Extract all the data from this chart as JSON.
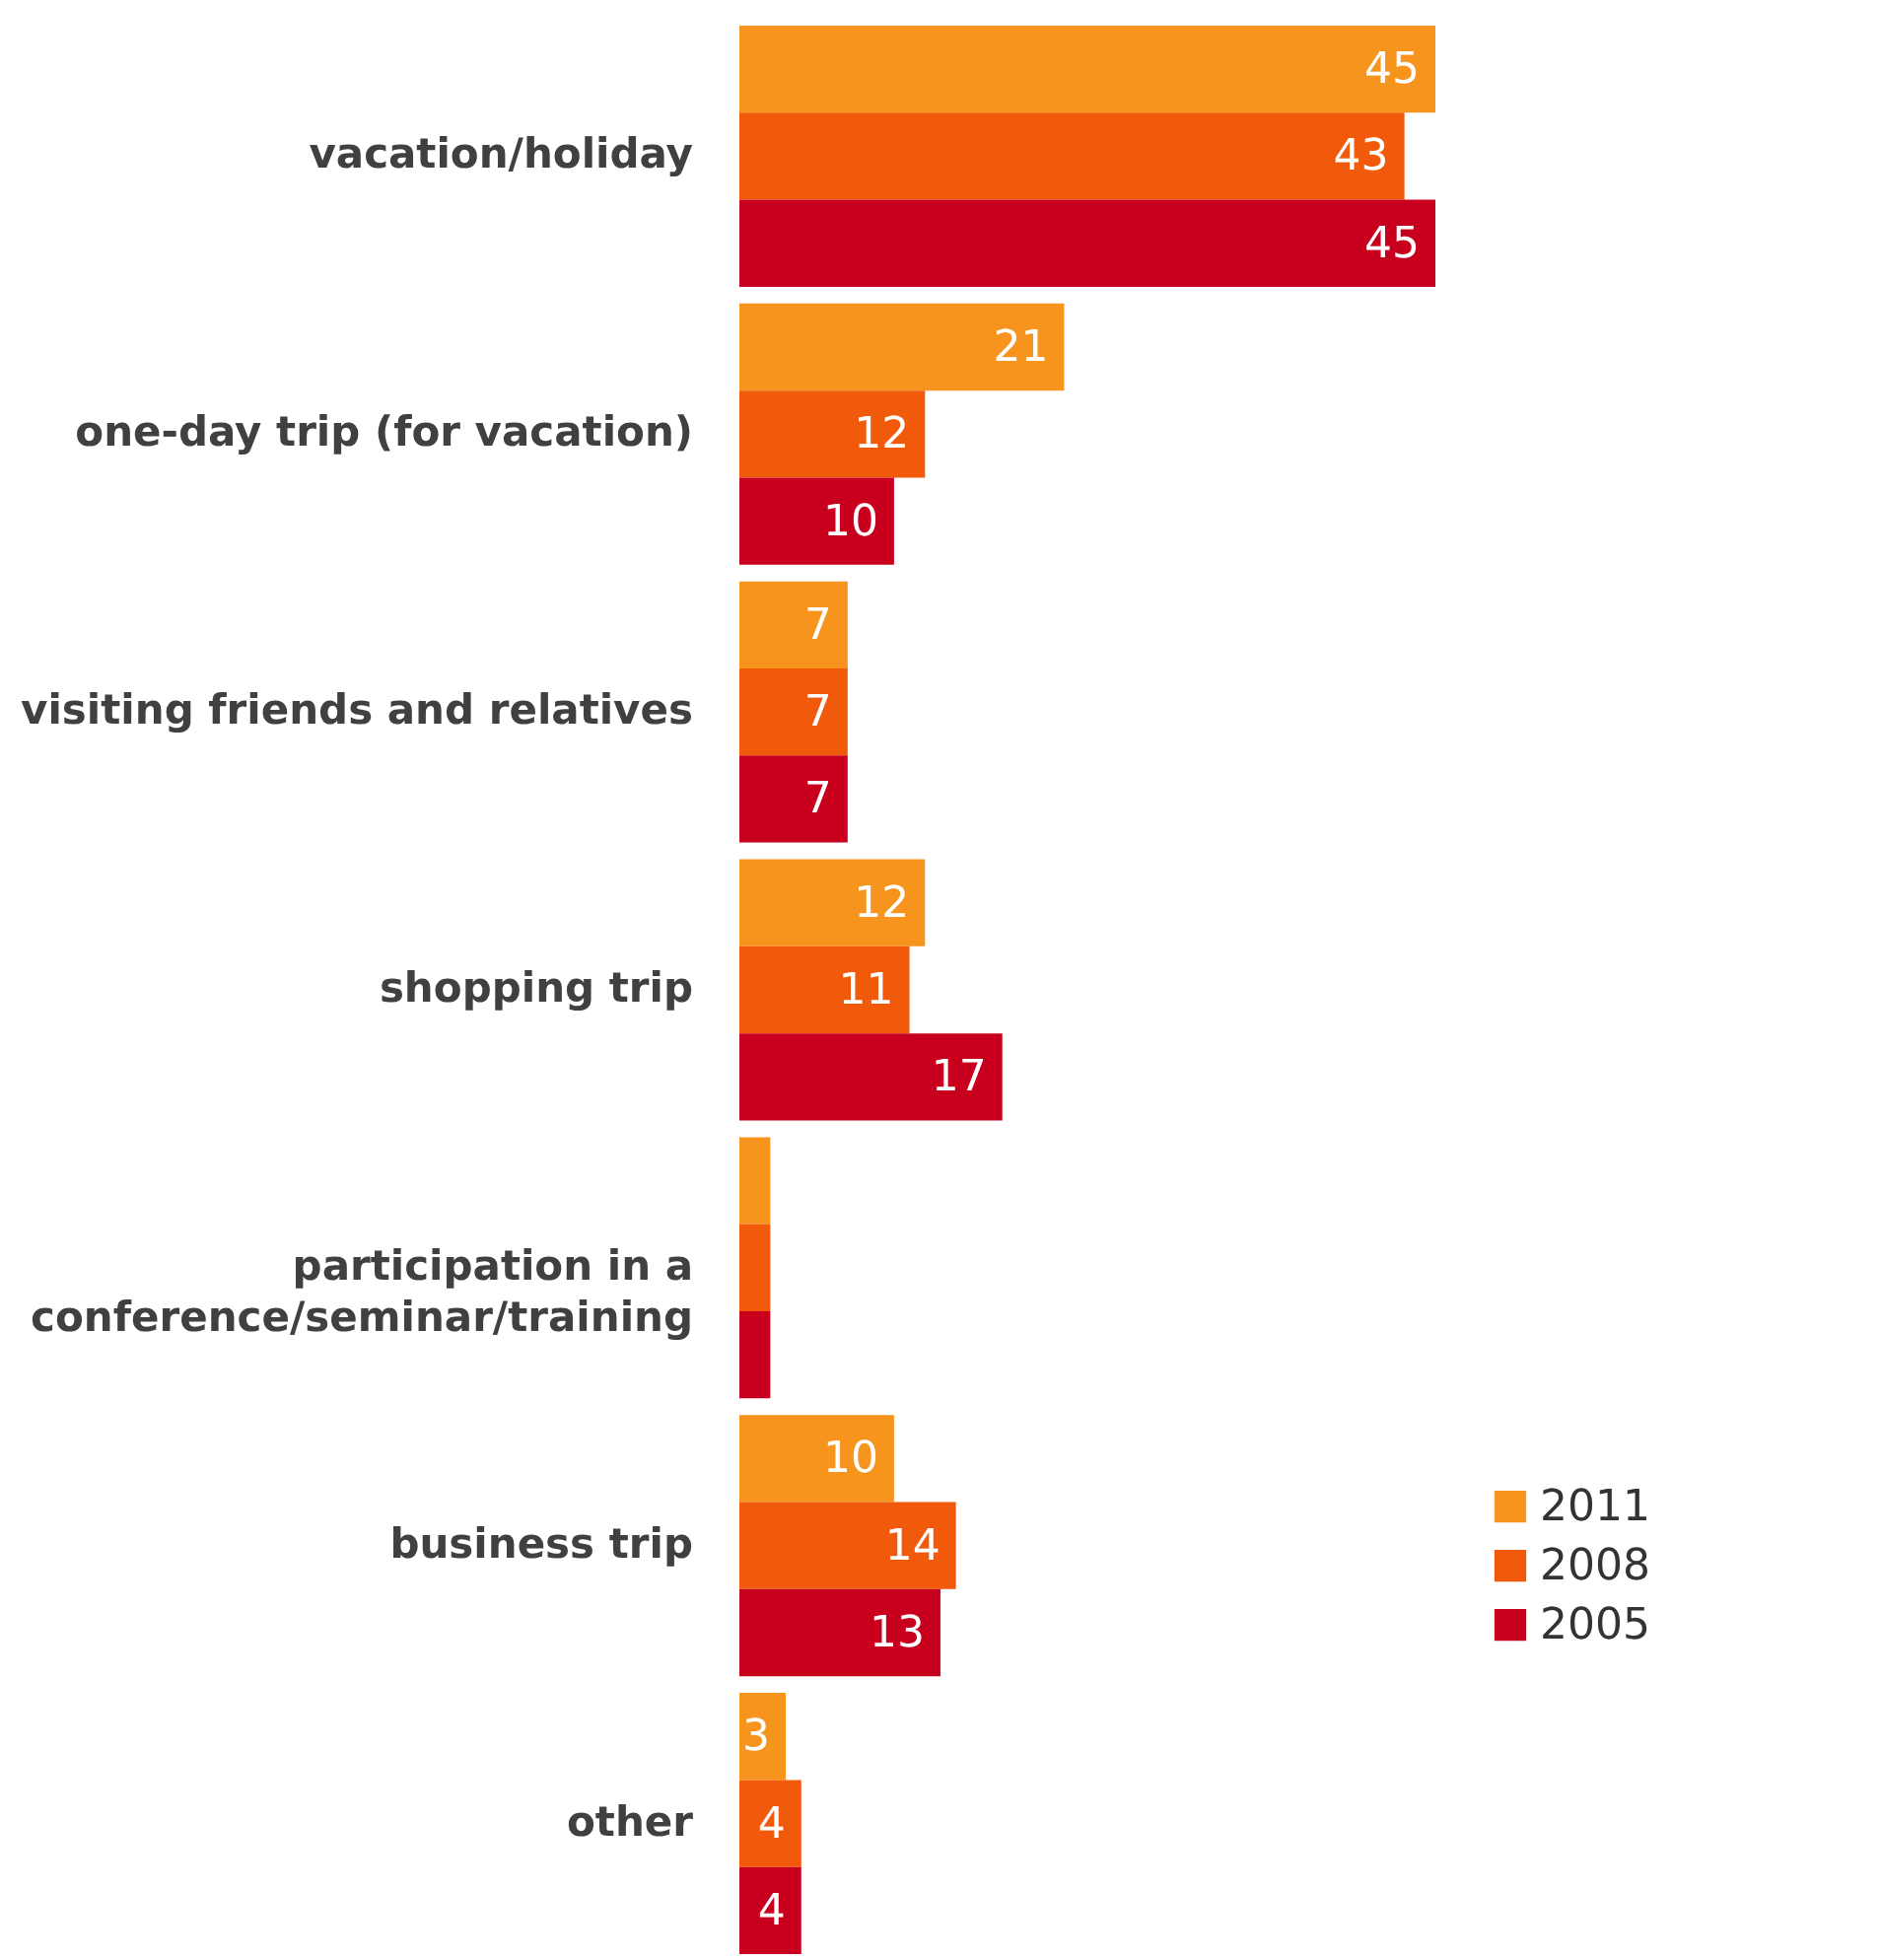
{
  "chart_data": {
    "type": "bar",
    "orientation": "horizontal",
    "legend": "right",
    "categories": [
      "vacation/holiday",
      "one-day trip (for vacation)",
      "visiting friends and relatives",
      "shopping trip",
      "participation in a conference/seminar/training",
      "business trip",
      "other"
    ],
    "series": [
      {
        "name": "2011",
        "color": "#f7941d",
        "values": [
          45,
          21,
          7,
          12,
          2,
          10,
          3
        ],
        "value_labels": [
          "45",
          "21",
          "7",
          "12",
          null,
          "10",
          "3"
        ]
      },
      {
        "name": "2008",
        "color": "#f05a0a",
        "values": [
          43,
          12,
          7,
          11,
          2,
          14,
          4
        ],
        "value_labels": [
          "43",
          "12",
          "7",
          "11",
          null,
          "14",
          "4"
        ]
      },
      {
        "name": "2005",
        "color": "#c8001e",
        "values": [
          45,
          10,
          7,
          17,
          2,
          13,
          4
        ],
        "value_labels": [
          "45",
          "10",
          "7",
          "17",
          null,
          "13",
          "4"
        ]
      }
    ]
  }
}
